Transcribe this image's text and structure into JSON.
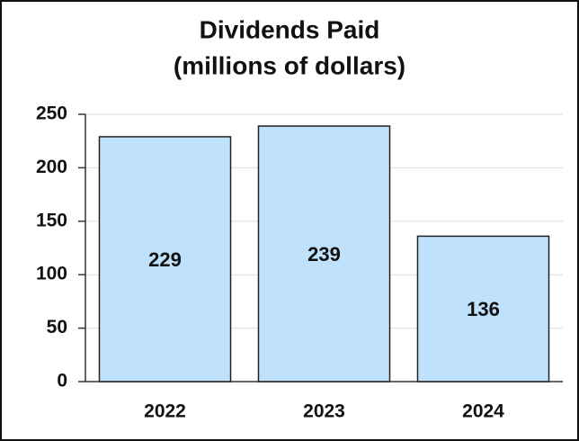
{
  "chart_data": {
    "type": "bar",
    "title": "Dividends Paid",
    "subtitle": "(millions of dollars)",
    "categories": [
      "2022",
      "2023",
      "2024"
    ],
    "values": [
      229,
      239,
      136
    ],
    "color": "#bfe1fb",
    "ylim": [
      0,
      250
    ],
    "yticks": [
      0,
      50,
      100,
      150,
      200,
      250
    ],
    "grid": true
  }
}
